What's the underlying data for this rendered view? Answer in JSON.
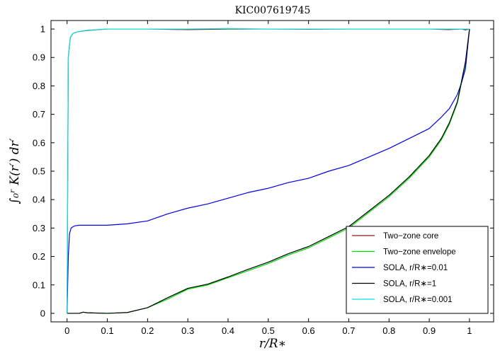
{
  "chart_data": {
    "type": "line",
    "title": "KIC007619745",
    "xlabel": "r/R∗",
    "ylabel": "∫₀ʳ K(r′) dr′",
    "xlim": [
      -0.04,
      1.06
    ],
    "ylim": [
      -0.03,
      1.03
    ],
    "xticks": [
      0,
      0.1,
      0.2,
      0.3,
      0.4,
      0.5,
      0.6,
      0.7,
      0.8,
      0.9,
      1
    ],
    "xtick_labels": [
      "0",
      "0.1",
      "0.2",
      "0.3",
      "0.4",
      "0.5",
      "0.6",
      "0.7",
      "0.8",
      "0.9",
      "1"
    ],
    "yticks": [
      0,
      0.1,
      0.2,
      0.3,
      0.4,
      0.5,
      0.6,
      0.7,
      0.8,
      0.9,
      1
    ],
    "ytick_labels": [
      "0",
      "0.1",
      "0.2",
      "0.3",
      "0.4",
      "0.5",
      "0.6",
      "0.7",
      "0.8",
      "0.9",
      "1"
    ],
    "grid": false,
    "legend_position": "bottom-right",
    "series": [
      {
        "name": "Two−zone core",
        "color": "#8b1a1a",
        "x": [
          0,
          0.003,
          0.008,
          0.015,
          0.025,
          0.05,
          0.1,
          0.2,
          0.3,
          0.4,
          0.5,
          0.6,
          0.7,
          0.8,
          0.9,
          0.95,
          0.98,
          0.99,
          1.0
        ],
        "y": [
          0,
          0.9,
          0.97,
          0.985,
          0.99,
          0.995,
          1.0,
          1.0,
          0.998,
          1.0,
          1.0,
          0.999,
          1.0,
          1.0,
          1.0,
          0.998,
          1.0,
          0.997,
          1.0
        ]
      },
      {
        "name": "Two−zone envelope",
        "color": "#00dd00",
        "x": [
          0,
          0.02,
          0.03,
          0.04,
          0.05,
          0.1,
          0.15,
          0.2,
          0.25,
          0.3,
          0.35,
          0.4,
          0.45,
          0.5,
          0.55,
          0.6,
          0.65,
          0.7,
          0.75,
          0.8,
          0.85,
          0.9,
          0.93,
          0.95,
          0.97,
          0.99,
          1.0
        ],
        "y": [
          0,
          0.0,
          0.0,
          0.004,
          0.002,
          0.0,
          0.003,
          0.02,
          0.05,
          0.085,
          0.1,
          0.125,
          0.15,
          0.175,
          0.205,
          0.23,
          0.265,
          0.3,
          0.355,
          0.41,
          0.475,
          0.55,
          0.61,
          0.665,
          0.74,
          0.88,
          1.0
        ]
      },
      {
        "name": "SOLA, r/R∗=0.01",
        "color": "#0000ee",
        "x": [
          0,
          0.003,
          0.006,
          0.01,
          0.015,
          0.02,
          0.03,
          0.05,
          0.1,
          0.15,
          0.2,
          0.25,
          0.3,
          0.35,
          0.4,
          0.45,
          0.5,
          0.55,
          0.6,
          0.65,
          0.7,
          0.75,
          0.8,
          0.85,
          0.9,
          0.93,
          0.95,
          0.97,
          0.98,
          0.99,
          1.0
        ],
        "y": [
          0,
          0.2,
          0.28,
          0.3,
          0.305,
          0.308,
          0.31,
          0.31,
          0.31,
          0.315,
          0.325,
          0.35,
          0.37,
          0.385,
          0.405,
          0.425,
          0.44,
          0.46,
          0.475,
          0.5,
          0.52,
          0.55,
          0.58,
          0.615,
          0.65,
          0.69,
          0.72,
          0.77,
          0.81,
          0.86,
          1.0
        ]
      },
      {
        "name": "SOLA, r/R∗=1",
        "color": "#000000",
        "x": [
          0,
          0.02,
          0.03,
          0.04,
          0.05,
          0.1,
          0.15,
          0.2,
          0.25,
          0.3,
          0.35,
          0.4,
          0.45,
          0.5,
          0.55,
          0.6,
          0.65,
          0.7,
          0.75,
          0.8,
          0.85,
          0.9,
          0.93,
          0.95,
          0.97,
          0.99,
          1.0
        ],
        "y": [
          0,
          0.0,
          0.0,
          0.004,
          0.002,
          0.0,
          0.003,
          0.02,
          0.055,
          0.088,
          0.103,
          0.128,
          0.155,
          0.18,
          0.21,
          0.235,
          0.27,
          0.305,
          0.36,
          0.415,
          0.48,
          0.555,
          0.615,
          0.67,
          0.745,
          0.885,
          1.0
        ]
      },
      {
        "name": "SOLA, r/R∗=0.001",
        "color": "#00e5e5",
        "x": [
          0,
          0.003,
          0.008,
          0.015,
          0.025,
          0.05,
          0.1,
          0.2,
          0.3,
          0.4,
          0.5,
          0.6,
          0.7,
          0.8,
          0.9,
          0.95,
          0.98,
          0.99,
          1.0
        ],
        "y": [
          0,
          0.9,
          0.97,
          0.985,
          0.99,
          0.996,
          1.0,
          1.0,
          1.0,
          1.002,
          1.0,
          1.0,
          1.0,
          1.0,
          1.0,
          1.0,
          1.0,
          1.0,
          1.0
        ]
      }
    ]
  }
}
